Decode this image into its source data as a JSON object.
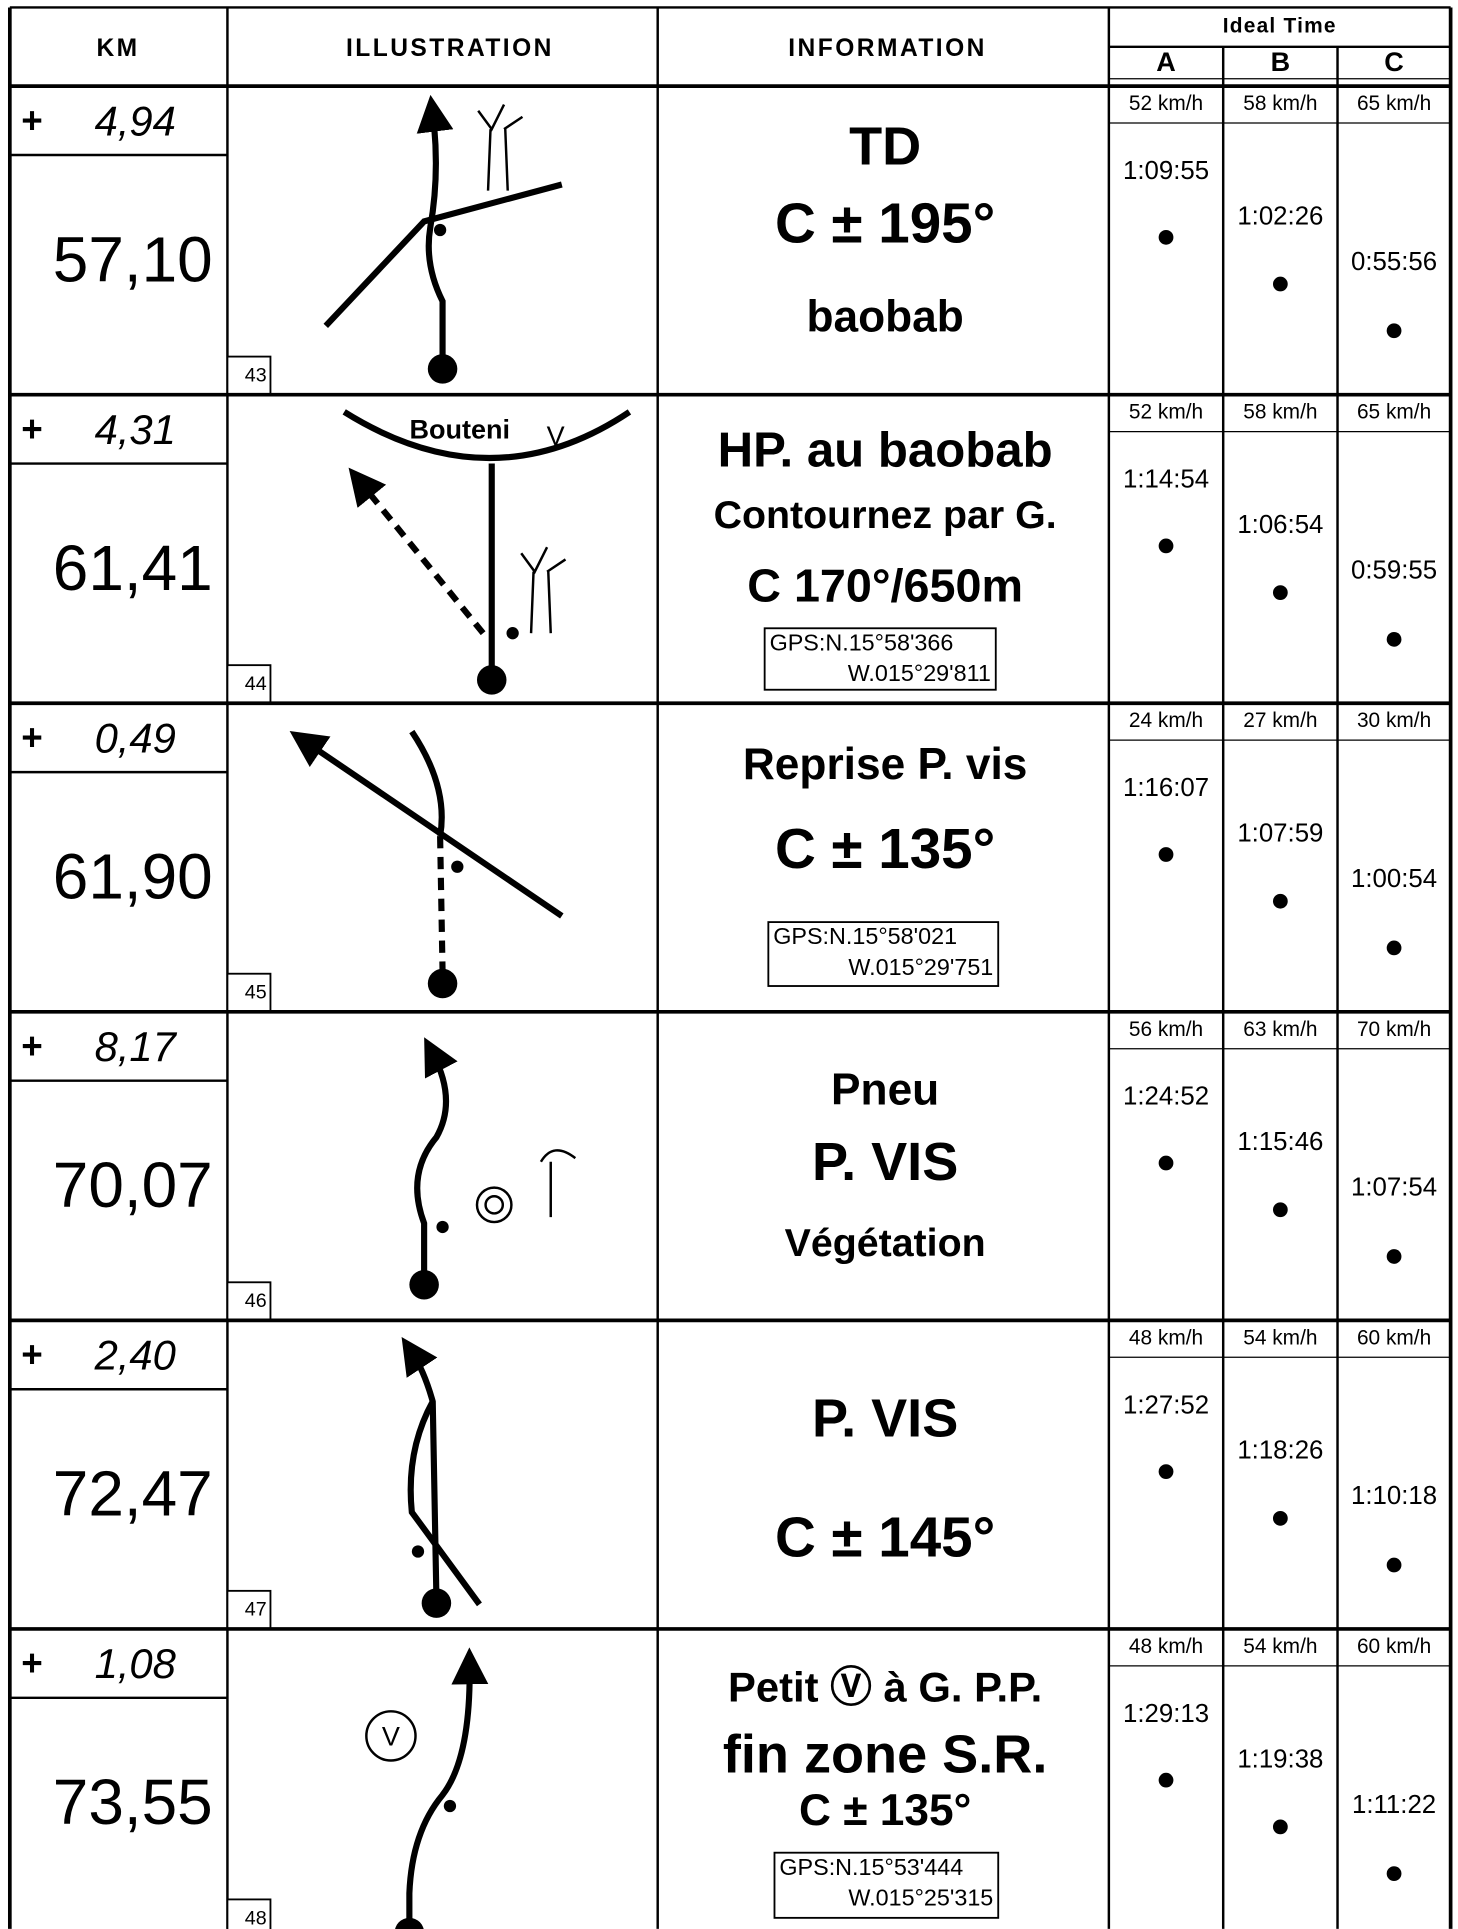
{
  "header": {
    "km": "KM",
    "illustration": "ILLUSTRATION",
    "information": "INFORMATION",
    "ideal_time": "Ideal Time",
    "columns": [
      "A",
      "B",
      "C"
    ]
  },
  "rows": [
    {
      "plus": "+",
      "partial": "4,94",
      "total": "57,10",
      "number": "43",
      "labels": [],
      "info": [
        "TD",
        "C ± 195°",
        "baobab"
      ],
      "gps": [],
      "speeds": [
        "52 km/h",
        "58 km/h",
        "65 km/h"
      ],
      "times": [
        "1:09:55",
        "1:02:26",
        "0:55:56"
      ]
    },
    {
      "plus": "+",
      "partial": "4,31",
      "total": "61,41",
      "number": "44",
      "labels": [
        "Bouteni",
        "V"
      ],
      "info": [
        "HP.  au baobab",
        "Contournez par G.",
        "C 170°/650m"
      ],
      "gps": [
        "GPS:N.15°58'366",
        "W.015°29'811"
      ],
      "speeds": [
        "52 km/h",
        "58 km/h",
        "65 km/h"
      ],
      "times": [
        "1:14:54",
        "1:06:54",
        "0:59:55"
      ]
    },
    {
      "plus": "+",
      "partial": "0,49",
      "total": "61,90",
      "number": "45",
      "labels": [],
      "info": [
        "Reprise P. vis",
        "C ± 135°"
      ],
      "gps": [
        "GPS:N.15°58'021",
        "W.015°29'751"
      ],
      "speeds": [
        "24 km/h",
        "27 km/h",
        "30 km/h"
      ],
      "times": [
        "1:16:07",
        "1:07:59",
        "1:00:54"
      ]
    },
    {
      "plus": "+",
      "partial": "8,17",
      "total": "70,07",
      "number": "46",
      "labels": [],
      "info": [
        "Pneu",
        "P. VIS",
        "Végétation"
      ],
      "gps": [],
      "speeds": [
        "56 km/h",
        "63 km/h",
        "70 km/h"
      ],
      "times": [
        "1:24:52",
        "1:15:46",
        "1:07:54"
      ]
    },
    {
      "plus": "+",
      "partial": "2,40",
      "total": "72,47",
      "number": "47",
      "labels": [],
      "info": [
        "P. VIS",
        "C ± 145°"
      ],
      "gps": [],
      "speeds": [
        "48 km/h",
        "54 km/h",
        "60 km/h"
      ],
      "times": [
        "1:27:52",
        "1:18:26",
        "1:10:18"
      ]
    },
    {
      "plus": "+",
      "partial": "1,08",
      "total": "73,55",
      "number": "48",
      "labels": [
        "V"
      ],
      "info": [
        "Petit Ⓥ à G.   P.P.",
        "fin zone S.R.",
        "C ± 135°"
      ],
      "gps": [
        "GPS:N.15°53'444",
        "W.015°25'315"
      ],
      "speeds": [
        "48 km/h",
        "54 km/h",
        "60 km/h"
      ],
      "times": [
        "1:29:13",
        "1:19:38",
        "1:11:22"
      ]
    }
  ]
}
